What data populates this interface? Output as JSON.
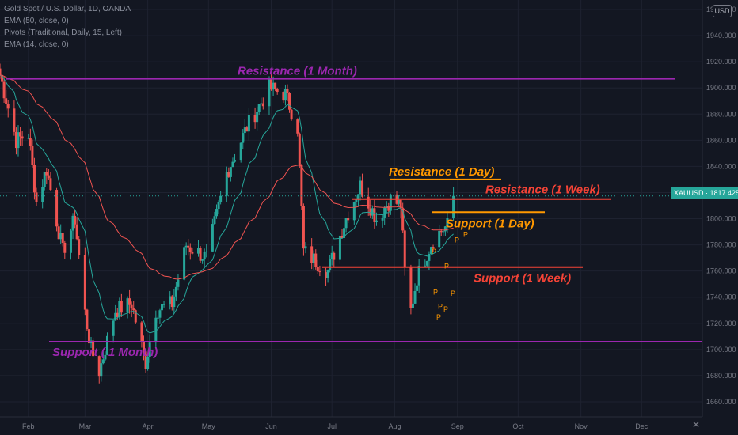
{
  "legend": {
    "symbol": "Gold Spot / U.S. Dollar, 1D, OANDA",
    "ema50": "EMA (50, close, 0)",
    "pivots": "Pivots (Traditional, Daily, 15, Left)",
    "ema14": "EMA (14, close, 0)"
  },
  "currency_badge": "USD",
  "price_tag": "XAUUSD  ·  1817.425",
  "colors": {
    "background": "#131722",
    "up": "#26a69a",
    "down": "#ef5350",
    "ema14": "#26a69a",
    "ema50": "#ef5350",
    "monthly": "#9c27b0",
    "daily": "#ff9800",
    "weekly": "#f44336"
  },
  "chart_data": {
    "type": "candlestick",
    "x_ticks": [
      "Feb",
      "Mar",
      "Apr",
      "May",
      "Jun",
      "Jul",
      "Aug",
      "Sep",
      "Oct",
      "Nov",
      "Dec"
    ],
    "y_ticks": [
      "1960.000",
      "1940.000",
      "1920.000",
      "1900.000",
      "1880.000",
      "1860.000",
      "1840.000",
      "1820.000",
      "1800.000",
      "1780.000",
      "1760.000",
      "1740.000",
      "1720.000",
      "1700.000",
      "1680.000",
      "1660.000"
    ],
    "ylim": [
      1650,
      1960
    ],
    "last_price": 1817.425,
    "price_path": [
      [
        "2021-01-18",
        1910
      ],
      [
        "2021-01-26",
        1860
      ],
      [
        "2021-02-01",
        1865
      ],
      [
        "2021-02-05",
        1813
      ],
      [
        "2021-02-10",
        1838
      ],
      [
        "2021-02-18",
        1775
      ],
      [
        "2021-02-24",
        1800
      ],
      [
        "2021-03-01",
        1728
      ],
      [
        "2021-03-04",
        1700
      ],
      [
        "2021-03-08",
        1683
      ],
      [
        "2021-03-16",
        1730
      ],
      [
        "2021-03-24",
        1735
      ],
      [
        "2021-03-31",
        1690
      ],
      [
        "2021-04-05",
        1730
      ],
      [
        "2021-04-13",
        1735
      ],
      [
        "2021-04-20",
        1780
      ],
      [
        "2021-04-30",
        1770
      ],
      [
        "2021-05-10",
        1835
      ],
      [
        "2021-05-20",
        1870
      ],
      [
        "2021-05-31",
        1900
      ],
      [
        "2021-06-08",
        1895
      ],
      [
        "2021-06-14",
        1870
      ],
      [
        "2021-06-17",
        1775
      ],
      [
        "2021-06-29",
        1760
      ],
      [
        "2021-07-09",
        1805
      ],
      [
        "2021-07-15",
        1825
      ],
      [
        "2021-07-23",
        1800
      ],
      [
        "2021-07-30",
        1815
      ],
      [
        "2021-08-04",
        1810
      ],
      [
        "2021-08-06",
        1760
      ],
      [
        "2021-08-09",
        1730
      ],
      [
        "2021-08-12",
        1755
      ],
      [
        "2021-08-20",
        1785
      ],
      [
        "2021-08-27",
        1795
      ],
      [
        "2021-08-30",
        1817.425
      ]
    ],
    "levels": [
      {
        "label": "Resistance (1 Month)",
        "value": 1907,
        "color": "#9c27b0"
      },
      {
        "label": "Support ( 1 Month)",
        "value": 1706,
        "color": "#9c27b0"
      },
      {
        "label": "Resistance (1 Day)",
        "value": 1830,
        "color": "#ff9800"
      },
      {
        "label": "Support (1 Day)",
        "value": 1805,
        "color": "#ff9800"
      },
      {
        "label": "Resistance (1 Week)",
        "value": 1815,
        "color": "#f44336"
      },
      {
        "label": "Support (1 Week)",
        "value": 1763,
        "color": "#f44336"
      }
    ],
    "pivot_marker": "P",
    "pivot_values": [
      1773,
      1762,
      1742,
      1731,
      1723,
      1729,
      1741,
      1782,
      1786
    ]
  },
  "footer": {
    "close_symbol": "✕"
  }
}
